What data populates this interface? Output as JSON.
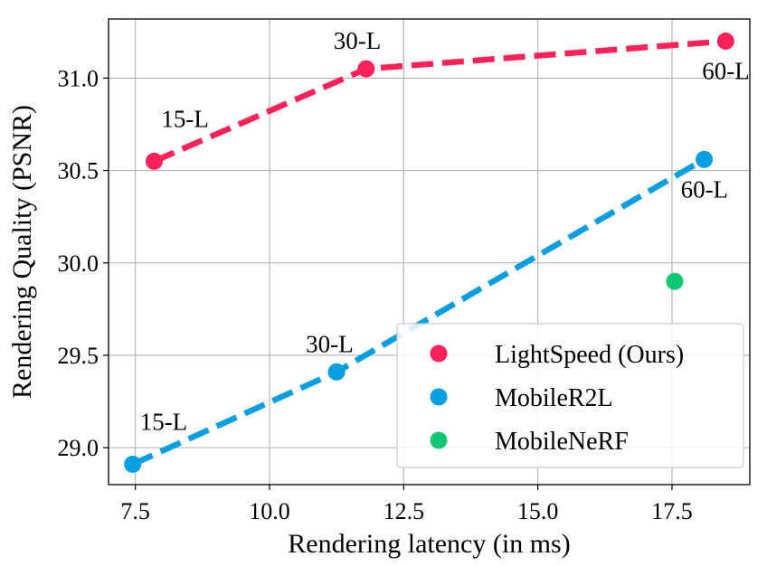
{
  "chart_data": {
    "type": "line",
    "xlabel": "Rendering latency (in ms)",
    "ylabel": "Rendering Quality (PSNR)",
    "xlim": [
      7.0,
      18.95
    ],
    "ylim": [
      28.8,
      31.32
    ],
    "xticks": [
      7.5,
      10.0,
      12.5,
      15.0,
      17.5
    ],
    "xtick_labels": [
      "7.5",
      "10.0",
      "12.5",
      "15.0",
      "17.5"
    ],
    "yticks": [
      29.0,
      29.5,
      30.0,
      30.5,
      31.0
    ],
    "ytick_labels": [
      "29.0",
      "29.5",
      "30.0",
      "30.5",
      "31.0"
    ],
    "grid": true,
    "legend_position": "bottom-right",
    "series": [
      {
        "name": "LightSpeed (Ours)",
        "color": "#ff2157",
        "line": "dashed",
        "points": [
          {
            "x": 7.85,
            "y": 30.55,
            "label": "15-L"
          },
          {
            "x": 11.8,
            "y": 31.05,
            "label": "30-L"
          },
          {
            "x": 18.5,
            "y": 31.2,
            "label": "60-L"
          }
        ]
      },
      {
        "name": "MobileR2L",
        "color": "#079fe0",
        "line": "dashed",
        "points": [
          {
            "x": 7.45,
            "y": 28.91,
            "label": "15-L"
          },
          {
            "x": 11.25,
            "y": 29.41,
            "label": "30-L"
          },
          {
            "x": 18.1,
            "y": 30.56,
            "label": "60-L"
          }
        ]
      },
      {
        "name": "MobileNeRF",
        "color": "#10c872",
        "line": "none",
        "points": [
          {
            "x": 17.55,
            "y": 29.9,
            "label": ""
          }
        ]
      }
    ]
  }
}
